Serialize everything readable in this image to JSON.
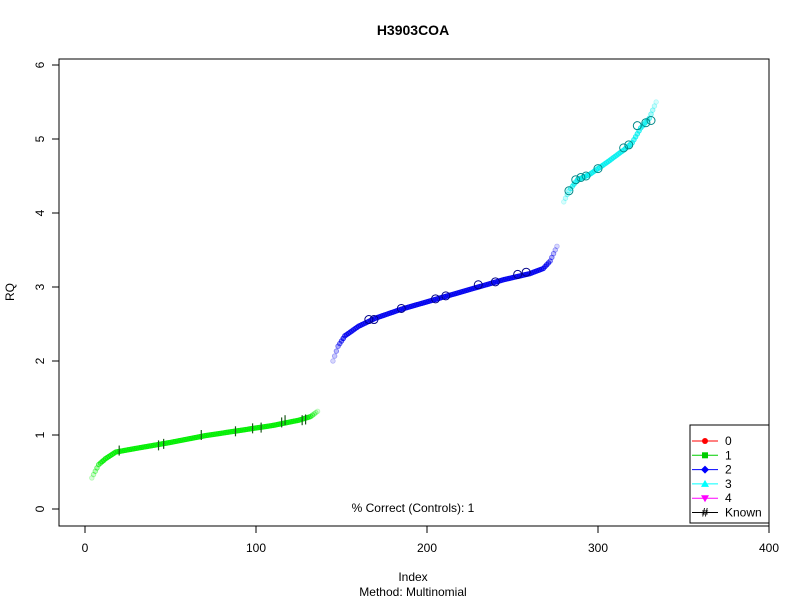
{
  "chart_data": {
    "type": "scatter",
    "title": "H3903COA",
    "xlabel": "Index",
    "ylabel": "RQ",
    "subtitle": "Method: Multinomial",
    "annotation": "% Correct (Controls): 1",
    "xlim": [
      0,
      400
    ],
    "ylim": [
      0,
      6
    ],
    "x_ticks": [
      "0",
      "100",
      "200",
      "300",
      "400"
    ],
    "y_ticks": [
      "0",
      "1",
      "2",
      "3",
      "4",
      "5",
      "6"
    ],
    "x_tick_values": [
      0,
      100,
      200,
      300,
      400
    ],
    "y_tick_values": [
      0,
      1,
      2,
      3,
      4,
      5,
      6
    ],
    "legend_position": "bottom-right",
    "legend": [
      {
        "label": "0",
        "color": "#ff0000",
        "marker": "circle"
      },
      {
        "label": "1",
        "color": "#00cd00",
        "marker": "square"
      },
      {
        "label": "2",
        "color": "#0000ff",
        "marker": "diamond"
      },
      {
        "label": "3",
        "color": "#00ffff",
        "marker": "triangle"
      },
      {
        "label": "4",
        "color": "#ff00ff",
        "marker": "triangle-down"
      },
      {
        "label": "Known",
        "color": "#000000",
        "marker": "#"
      }
    ],
    "series": [
      {
        "name": "1",
        "color": "#00ee00",
        "curve": [
          [
            4,
            0.42
          ],
          [
            8,
            0.6
          ],
          [
            12,
            0.68
          ],
          [
            18,
            0.77
          ],
          [
            30,
            0.82
          ],
          [
            50,
            0.9
          ],
          [
            70,
            0.99
          ],
          [
            90,
            1.06
          ],
          [
            110,
            1.13
          ],
          [
            125,
            1.2
          ],
          [
            132,
            1.25
          ],
          [
            136,
            1.32
          ]
        ],
        "x_range": [
          4,
          136
        ],
        "known_markers": [
          [
            20,
            0.79
          ],
          [
            43,
            0.86
          ],
          [
            46,
            0.88
          ],
          [
            68,
            1.0
          ],
          [
            88,
            1.05
          ],
          [
            98,
            1.09
          ],
          [
            103,
            1.1
          ],
          [
            115,
            1.17
          ],
          [
            117,
            1.2
          ],
          [
            127,
            1.2
          ],
          [
            129,
            1.21
          ]
        ]
      },
      {
        "name": "2",
        "color": "#0000ee",
        "curve": [
          [
            145,
            2.0
          ],
          [
            148,
            2.2
          ],
          [
            152,
            2.34
          ],
          [
            160,
            2.47
          ],
          [
            170,
            2.58
          ],
          [
            185,
            2.7
          ],
          [
            200,
            2.8
          ],
          [
            215,
            2.9
          ],
          [
            230,
            3.0
          ],
          [
            245,
            3.1
          ],
          [
            260,
            3.18
          ],
          [
            268,
            3.25
          ],
          [
            272,
            3.35
          ],
          [
            276,
            3.55
          ]
        ],
        "x_range": [
          145,
          276
        ],
        "known_markers": [
          [
            166,
            2.56
          ],
          [
            169,
            2.56
          ],
          [
            185,
            2.71
          ],
          [
            205,
            2.84
          ],
          [
            211,
            2.88
          ],
          [
            230,
            3.03
          ],
          [
            240,
            3.07
          ],
          [
            253,
            3.17
          ],
          [
            258,
            3.2
          ]
        ]
      },
      {
        "name": "3",
        "color": "#00eeee",
        "curve": [
          [
            280,
            4.15
          ],
          [
            283,
            4.3
          ],
          [
            288,
            4.45
          ],
          [
            295,
            4.52
          ],
          [
            305,
            4.68
          ],
          [
            315,
            4.85
          ],
          [
            320,
            4.95
          ],
          [
            325,
            5.15
          ],
          [
            330,
            5.28
          ],
          [
            334,
            5.5
          ]
        ],
        "x_range": [
          280,
          334
        ],
        "known_markers": [
          [
            283,
            4.3
          ],
          [
            287,
            4.45
          ],
          [
            290,
            4.48
          ],
          [
            293,
            4.5
          ],
          [
            300,
            4.6
          ],
          [
            315,
            4.88
          ],
          [
            318,
            4.92
          ],
          [
            323,
            5.18
          ],
          [
            328,
            5.22
          ],
          [
            331,
            5.25
          ]
        ]
      }
    ]
  }
}
